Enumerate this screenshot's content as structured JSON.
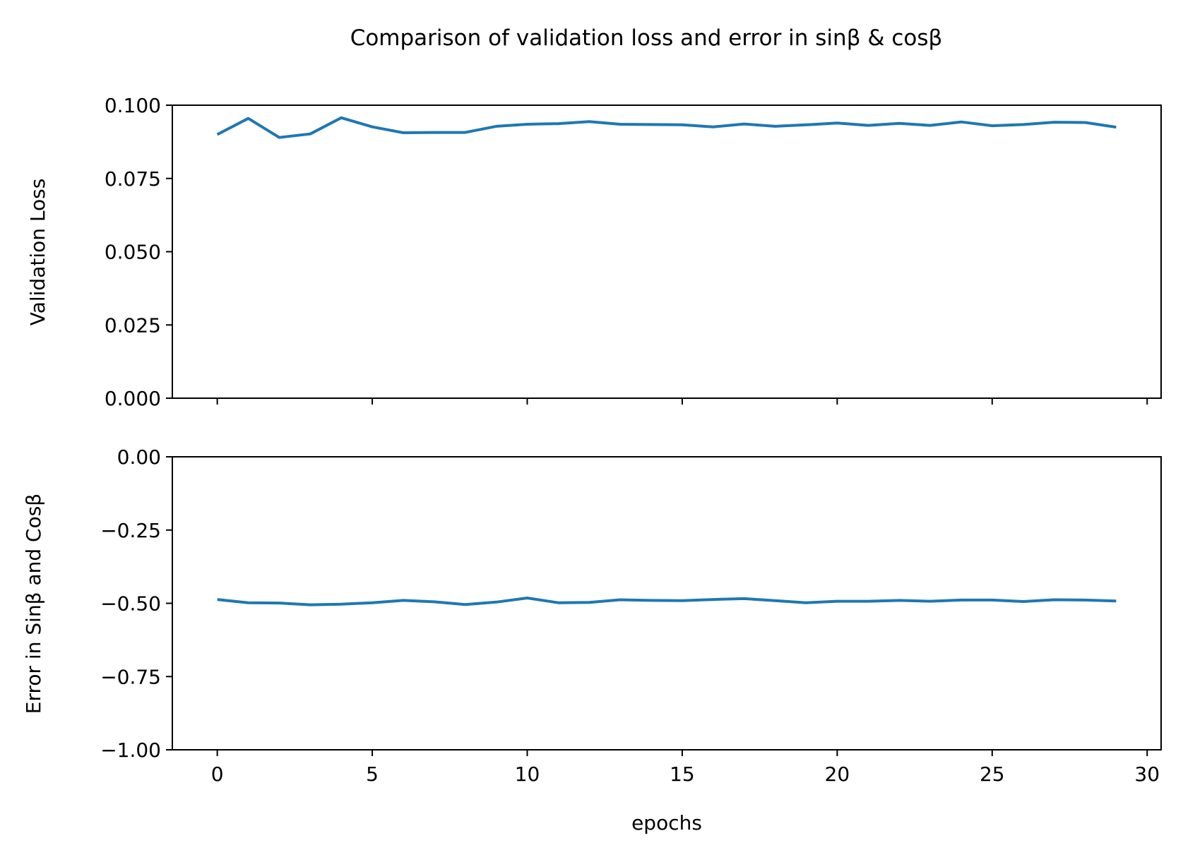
{
  "figure": {
    "title": "Comparison of validation loss and error in sinβ & cosβ"
  },
  "line_color": "#1f77b4",
  "chart_data": [
    {
      "type": "line",
      "ylabel": "Validation Loss",
      "xlabel": "",
      "xlim": [
        -1.45,
        30.45
      ],
      "ylim": [
        0.0,
        0.1
      ],
      "x_ticks": [
        0,
        5,
        10,
        15,
        20,
        25,
        30
      ],
      "x_tick_labels_shown": false,
      "y_ticks": [
        0.0,
        0.025,
        0.05,
        0.075,
        0.1
      ],
      "y_tick_labels": [
        "0.000",
        "0.025",
        "0.050",
        "0.075",
        "0.100"
      ],
      "grid": false,
      "x": [
        0,
        1,
        2,
        3,
        4,
        5,
        6,
        7,
        8,
        9,
        10,
        11,
        12,
        13,
        14,
        15,
        16,
        17,
        18,
        19,
        20,
        21,
        22,
        23,
        24,
        25,
        26,
        27,
        28,
        29
      ],
      "series": [
        {
          "values": [
            0.09,
            0.0955,
            0.089,
            0.0902,
            0.0957,
            0.0926,
            0.0906,
            0.0907,
            0.0907,
            0.0928,
            0.0935,
            0.0937,
            0.0944,
            0.0935,
            0.0934,
            0.0933,
            0.0926,
            0.0936,
            0.0928,
            0.0933,
            0.0939,
            0.0931,
            0.0938,
            0.0931,
            0.0943,
            0.093,
            0.0934,
            0.0942,
            0.0941,
            0.0925
          ]
        }
      ]
    },
    {
      "type": "line",
      "ylabel": "Error in Sinβ and Cosβ",
      "xlabel": "epochs",
      "xlim": [
        -1.45,
        30.45
      ],
      "ylim": [
        -1.0,
        0.0
      ],
      "x_ticks": [
        0,
        5,
        10,
        15,
        20,
        25,
        30
      ],
      "x_tick_labels": [
        "0",
        "5",
        "10",
        "15",
        "20",
        "25",
        "30"
      ],
      "y_ticks": [
        -1.0,
        -0.75,
        -0.5,
        -0.25,
        0.0
      ],
      "y_tick_labels": [
        "−1.00",
        "−0.75",
        "−0.50",
        "−0.25",
        "0.00"
      ],
      "grid": false,
      "x": [
        0,
        1,
        2,
        3,
        4,
        5,
        6,
        7,
        8,
        9,
        10,
        11,
        12,
        13,
        14,
        15,
        16,
        17,
        18,
        19,
        20,
        21,
        22,
        23,
        24,
        25,
        26,
        27,
        28,
        29
      ],
      "series": [
        {
          "values": [
            -0.487,
            -0.498,
            -0.499,
            -0.505,
            -0.503,
            -0.498,
            -0.49,
            -0.495,
            -0.504,
            -0.496,
            -0.482,
            -0.498,
            -0.497,
            -0.488,
            -0.49,
            -0.491,
            -0.487,
            -0.484,
            -0.491,
            -0.498,
            -0.493,
            -0.493,
            -0.49,
            -0.493,
            -0.489,
            -0.489,
            -0.494,
            -0.488,
            -0.489,
            -0.492
          ]
        }
      ]
    }
  ]
}
